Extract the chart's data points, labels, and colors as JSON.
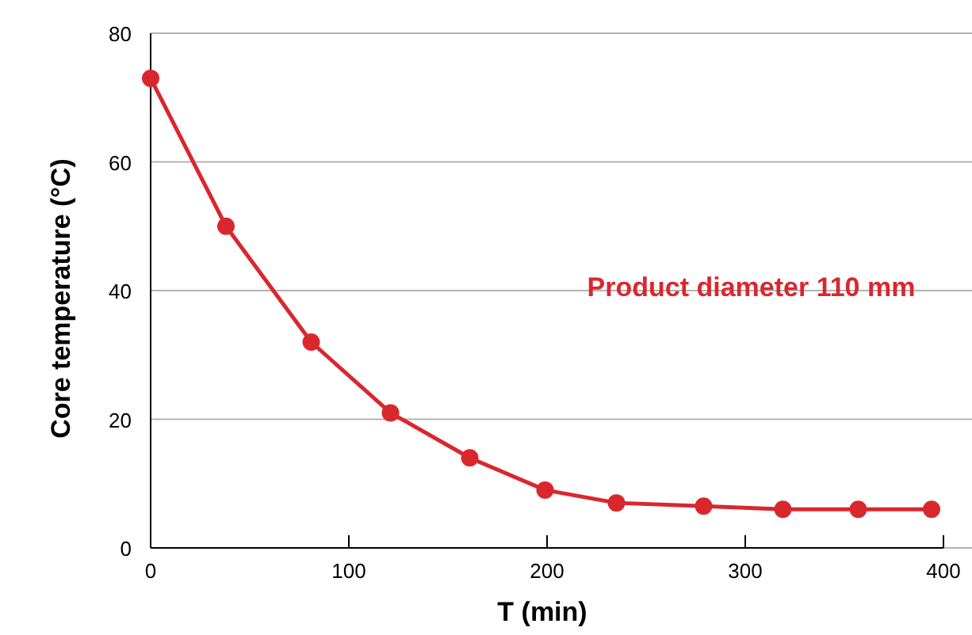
{
  "chart_data": {
    "type": "line",
    "xlabel": "T (min)",
    "ylabel": "Core temperature (°C)",
    "xlim": [
      0,
      400
    ],
    "xticks": [
      0,
      100,
      200,
      300,
      400
    ],
    "ylim": [
      0,
      80
    ],
    "yticks": [
      0,
      20,
      40,
      60,
      80
    ],
    "grid": "y",
    "marker": "circle",
    "line_style": "solid",
    "x": [
      0,
      38,
      81,
      121,
      161,
      199,
      235,
      279,
      319,
      357,
      394
    ],
    "series": [
      {
        "name": "Product diameter 110 mm",
        "color": "#d9272e",
        "values": [
          73,
          50,
          32,
          21,
          14,
          9,
          7,
          6.5,
          6,
          6,
          6
        ]
      }
    ]
  }
}
